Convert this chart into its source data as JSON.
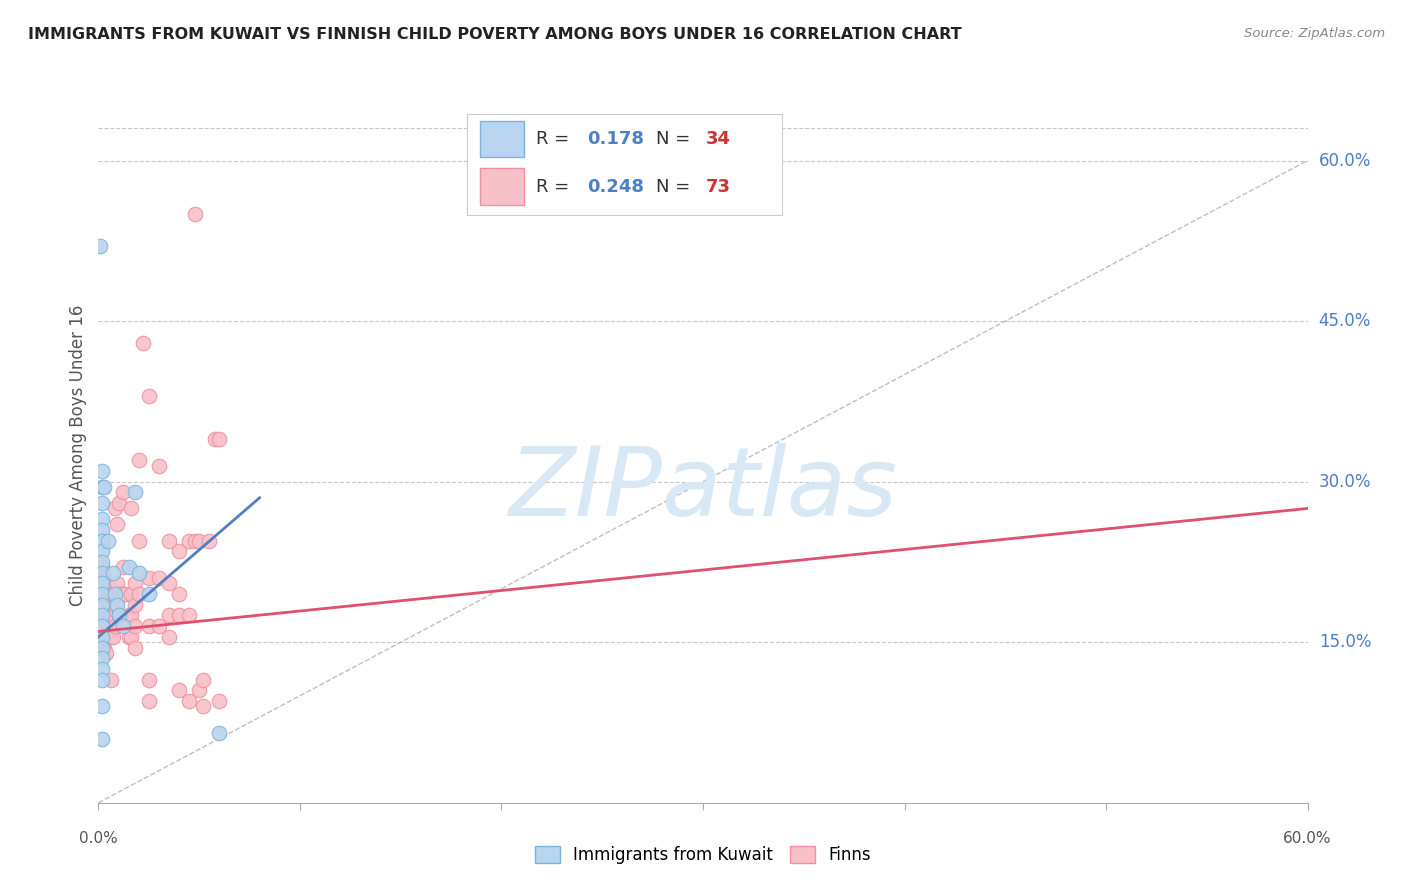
{
  "title": "IMMIGRANTS FROM KUWAIT VS FINNISH CHILD POVERTY AMONG BOYS UNDER 16 CORRELATION CHART",
  "source": "Source: ZipAtlas.com",
  "ylabel": "Child Poverty Among Boys Under 16",
  "ylabel_ticks_right": [
    "15.0%",
    "30.0%",
    "45.0%",
    "60.0%"
  ],
  "ylabel_ticks_right_vals": [
    0.15,
    0.3,
    0.45,
    0.6
  ],
  "xlim": [
    0.0,
    0.6
  ],
  "ylim": [
    0.0,
    0.65
  ],
  "background_color": "#ffffff",
  "grid_color": "#c8c8c8",
  "blue_color": "#7ab4dc",
  "pink_color": "#f090a0",
  "blue_fill": "#b8d4ee",
  "pink_fill": "#f8c0c8",
  "blue_line_color": "#5080c0",
  "pink_line_color": "#e05070",
  "watermark_color": "#d8e8f4",
  "blue_scatter": [
    [
      0.001,
      0.52
    ],
    [
      0.002,
      0.31
    ],
    [
      0.002,
      0.295
    ],
    [
      0.002,
      0.28
    ],
    [
      0.002,
      0.265
    ],
    [
      0.002,
      0.255
    ],
    [
      0.002,
      0.245
    ],
    [
      0.002,
      0.235
    ],
    [
      0.002,
      0.225
    ],
    [
      0.002,
      0.215
    ],
    [
      0.002,
      0.205
    ],
    [
      0.002,
      0.195
    ],
    [
      0.002,
      0.185
    ],
    [
      0.002,
      0.175
    ],
    [
      0.002,
      0.165
    ],
    [
      0.002,
      0.155
    ],
    [
      0.002,
      0.145
    ],
    [
      0.002,
      0.135
    ],
    [
      0.002,
      0.125
    ],
    [
      0.002,
      0.115
    ],
    [
      0.002,
      0.09
    ],
    [
      0.002,
      0.06
    ],
    [
      0.003,
      0.295
    ],
    [
      0.005,
      0.245
    ],
    [
      0.007,
      0.215
    ],
    [
      0.008,
      0.195
    ],
    [
      0.009,
      0.185
    ],
    [
      0.01,
      0.175
    ],
    [
      0.012,
      0.165
    ],
    [
      0.015,
      0.22
    ],
    [
      0.018,
      0.29
    ],
    [
      0.02,
      0.215
    ],
    [
      0.025,
      0.195
    ],
    [
      0.06,
      0.065
    ]
  ],
  "pink_scatter": [
    [
      0.002,
      0.22
    ],
    [
      0.002,
      0.175
    ],
    [
      0.002,
      0.155
    ],
    [
      0.003,
      0.21
    ],
    [
      0.003,
      0.175
    ],
    [
      0.003,
      0.145
    ],
    [
      0.004,
      0.19
    ],
    [
      0.004,
      0.165
    ],
    [
      0.004,
      0.14
    ],
    [
      0.005,
      0.195
    ],
    [
      0.005,
      0.175
    ],
    [
      0.005,
      0.16
    ],
    [
      0.006,
      0.2
    ],
    [
      0.006,
      0.175
    ],
    [
      0.006,
      0.155
    ],
    [
      0.006,
      0.115
    ],
    [
      0.007,
      0.195
    ],
    [
      0.007,
      0.175
    ],
    [
      0.007,
      0.155
    ],
    [
      0.008,
      0.275
    ],
    [
      0.008,
      0.185
    ],
    [
      0.008,
      0.165
    ],
    [
      0.009,
      0.26
    ],
    [
      0.009,
      0.205
    ],
    [
      0.01,
      0.28
    ],
    [
      0.01,
      0.195
    ],
    [
      0.01,
      0.175
    ],
    [
      0.012,
      0.29
    ],
    [
      0.012,
      0.22
    ],
    [
      0.012,
      0.195
    ],
    [
      0.013,
      0.195
    ],
    [
      0.015,
      0.175
    ],
    [
      0.015,
      0.155
    ],
    [
      0.016,
      0.275
    ],
    [
      0.016,
      0.195
    ],
    [
      0.016,
      0.175
    ],
    [
      0.016,
      0.155
    ],
    [
      0.018,
      0.205
    ],
    [
      0.018,
      0.185
    ],
    [
      0.018,
      0.165
    ],
    [
      0.018,
      0.145
    ],
    [
      0.02,
      0.32
    ],
    [
      0.02,
      0.245
    ],
    [
      0.02,
      0.195
    ],
    [
      0.022,
      0.43
    ],
    [
      0.025,
      0.38
    ],
    [
      0.025,
      0.21
    ],
    [
      0.025,
      0.165
    ],
    [
      0.025,
      0.115
    ],
    [
      0.025,
      0.095
    ],
    [
      0.03,
      0.315
    ],
    [
      0.03,
      0.21
    ],
    [
      0.03,
      0.165
    ],
    [
      0.035,
      0.245
    ],
    [
      0.035,
      0.205
    ],
    [
      0.035,
      0.175
    ],
    [
      0.035,
      0.155
    ],
    [
      0.04,
      0.235
    ],
    [
      0.04,
      0.195
    ],
    [
      0.04,
      0.175
    ],
    [
      0.04,
      0.105
    ],
    [
      0.045,
      0.245
    ],
    [
      0.045,
      0.175
    ],
    [
      0.045,
      0.095
    ],
    [
      0.048,
      0.55
    ],
    [
      0.048,
      0.245
    ],
    [
      0.05,
      0.105
    ],
    [
      0.05,
      0.245
    ],
    [
      0.052,
      0.115
    ],
    [
      0.052,
      0.09
    ],
    [
      0.055,
      0.245
    ],
    [
      0.058,
      0.34
    ],
    [
      0.06,
      0.34
    ],
    [
      0.06,
      0.095
    ]
  ],
  "blue_line_x": [
    0.0,
    0.08
  ],
  "blue_line_y": [
    0.155,
    0.285
  ],
  "pink_line_x": [
    0.0,
    0.6
  ],
  "pink_line_y": [
    0.16,
    0.275
  ],
  "diag_line_x": [
    0.0,
    0.6
  ],
  "diag_line_y": [
    0.0,
    0.6
  ]
}
